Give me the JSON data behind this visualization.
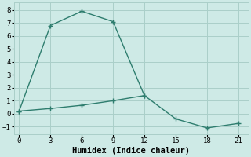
{
  "xlabel": "Humidex (Indice chaleur)",
  "line1_x": [
    0,
    3,
    6,
    9,
    12
  ],
  "line1_y": [
    0.2,
    6.8,
    7.9,
    7.1,
    1.4
  ],
  "line2_x": [
    0,
    3,
    6,
    9,
    12,
    15,
    18,
    21
  ],
  "line2_y": [
    0.2,
    0.4,
    0.65,
    1.0,
    1.4,
    -0.4,
    -1.1,
    -0.75
  ],
  "line_color": "#2e7d6e",
  "bg_color": "#ceeae6",
  "grid_color": "#aacfc9",
  "xlim": [
    -0.5,
    22
  ],
  "ylim": [
    -1.6,
    8.6
  ],
  "xticks": [
    0,
    3,
    6,
    9,
    12,
    15,
    18,
    21
  ],
  "yticks": [
    -1,
    0,
    1,
    2,
    3,
    4,
    5,
    6,
    7,
    8
  ],
  "marker": "+",
  "markersize": 4,
  "linewidth": 1.0,
  "tick_labelsize": 6.5,
  "xlabel_fontsize": 7.5
}
